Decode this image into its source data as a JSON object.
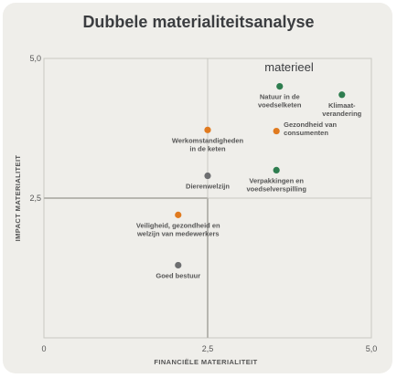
{
  "chart_data": {
    "type": "scatter",
    "title": "Dubbele materialiteitsanalyse",
    "xlabel": "FINANCIËLE MATERIALITEIT",
    "ylabel": "IMPACT MATERIALITEIT",
    "xlim": [
      0,
      5
    ],
    "ylim": [
      0,
      5
    ],
    "x_ticks": [
      "0",
      "2,5",
      "5,0"
    ],
    "y_ticks": [
      "2,5",
      "5,0"
    ],
    "grid": true,
    "annotation": "materieel",
    "colors": {
      "green": "#2e7d4f",
      "orange": "#e07a1f",
      "gray": "#6d6e70"
    },
    "points": [
      {
        "label": [
          "Natuur in de",
          "voedselketen"
        ],
        "x": 3.6,
        "y": 4.5,
        "color": "green",
        "label_pos": "below"
      },
      {
        "label": [
          "Klimaat-",
          "verandering"
        ],
        "x": 4.55,
        "y": 4.35,
        "color": "green",
        "label_pos": "below"
      },
      {
        "label": [
          "Gezondheid van",
          "consumenten"
        ],
        "x": 3.55,
        "y": 3.7,
        "color": "orange",
        "label_pos": "right"
      },
      {
        "label": [
          "Werkomstandigheden",
          "in de keten"
        ],
        "x": 2.5,
        "y": 3.72,
        "color": "orange",
        "label_pos": "below"
      },
      {
        "label": [
          "Verpakkingen en",
          "voedselverspilling"
        ],
        "x": 3.55,
        "y": 3.0,
        "color": "green",
        "label_pos": "below"
      },
      {
        "label": [
          "Dierenwelzijn"
        ],
        "x": 2.5,
        "y": 2.9,
        "color": "gray",
        "label_pos": "below"
      },
      {
        "label": [
          "Veiligheid, gezondheid en",
          "welzijn van medewerkers"
        ],
        "x": 2.05,
        "y": 2.2,
        "color": "orange",
        "label_pos": "below"
      },
      {
        "label": [
          "Goed bestuur"
        ],
        "x": 2.05,
        "y": 1.3,
        "color": "gray",
        "label_pos": "below"
      }
    ]
  }
}
